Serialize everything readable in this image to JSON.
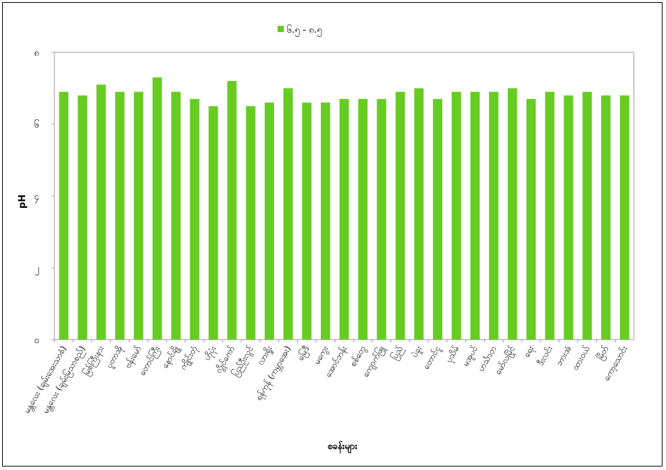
{
  "chart_data": {
    "type": "bar",
    "legend_position": "top-center",
    "grid": false,
    "ylabel": "pH",
    "xlabel": "စခန်းများ",
    "yticks": [
      "၀",
      "၂",
      "၄",
      "၆",
      "၈"
    ],
    "ylim": [
      0,
      8
    ],
    "bar_color": "#66cc22",
    "categories": [
      "မန္တလေး (ချမ်းအေးသာစံ)",
      "မန္တလေး (ချမ်းမြသာစည်)",
      "မြစ်ကြီးနား",
      "ပူတာအို",
      "ဗန်းမော်",
      "တောင်ကြီး",
      "နောင်ချို",
      "ကျိုင်းတုံ",
      "ဟိုပုံး",
      "လွိုင်ကော်",
      "ပြည်ဦးလွင်",
      "လားရှိုး",
      "ရန်ကုန် (ကမ္ဘာအေး)",
      "မြေဒီ",
      "မကွေး",
      "အောင်ဘန်း",
      "စစ်တွေ",
      "ကျောက်ဖြူ",
      "ပြည်",
      "ပဲခူး",
      "တောင်ငူ",
      "ပုသိမ်",
      "မအူပင်",
      "ဟင်္သာတ",
      "မော်လမြိုင်",
      "ရေး",
      "ဒီးလင်း",
      "ဘားအံ",
      "ထားဝယ်",
      "မြိတ်",
      "ကော့သောင်း"
    ],
    "series": [
      {
        "name": "၆.၅ - ၈.၅",
        "values": [
          6.9,
          6.8,
          7.1,
          6.9,
          6.9,
          7.3,
          6.9,
          6.7,
          6.5,
          7.2,
          6.5,
          6.6,
          7.0,
          6.6,
          6.6,
          6.7,
          6.7,
          6.7,
          6.9,
          7.0,
          6.7,
          6.9,
          6.9,
          6.9,
          7.0,
          6.7,
          6.9,
          6.8,
          6.9,
          6.8,
          6.8
        ]
      }
    ]
  }
}
